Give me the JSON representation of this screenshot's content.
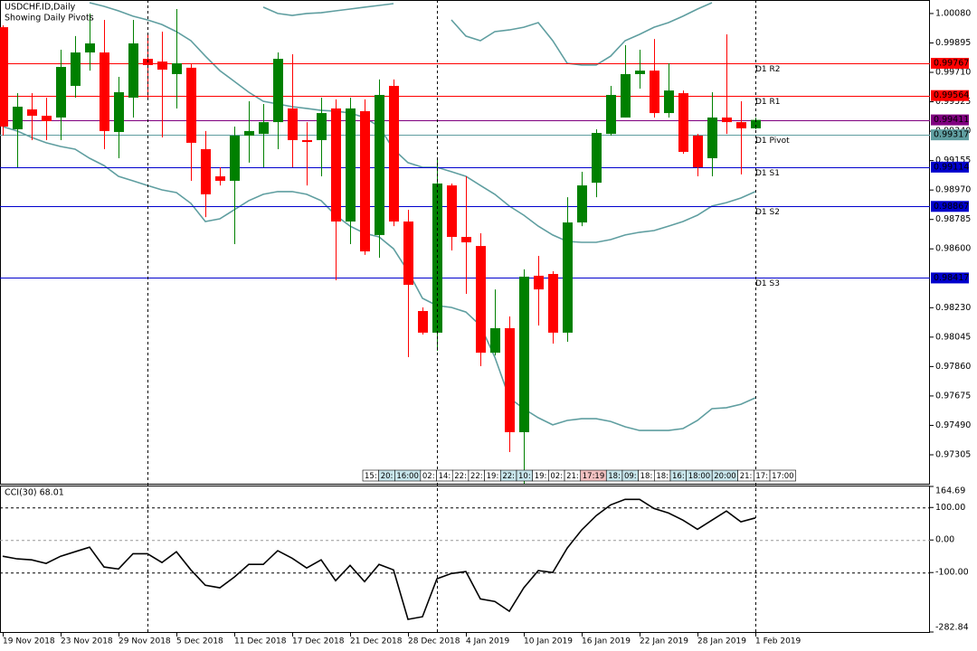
{
  "chart_data": [
    {
      "type": "candlestick",
      "title": "USDCHF.ID,Daily",
      "subtitle": "Showing Daily Pivots",
      "categories": [
        "19 Nov 2018",
        null,
        null,
        null,
        "23 Nov 2018",
        null,
        null,
        null,
        "29 Nov 2018",
        null,
        null,
        null,
        "5 Dec 2018",
        null,
        null,
        null,
        "11 Dec 2018",
        null,
        null,
        null,
        "17 Dec 2018",
        null,
        null,
        null,
        "21 Dec 2018",
        null,
        null,
        null,
        "28 Dec 2018",
        null,
        null,
        null,
        "4 Jan 2019",
        null,
        null,
        null,
        "10 Jan 2019",
        null,
        null,
        null,
        "16 Jan 2019",
        null,
        null,
        null,
        "22 Jan 2019",
        null,
        null,
        null,
        "28 Jan 2019",
        null,
        null,
        null,
        "1 Feb 2019"
      ],
      "open": [
        0.99994,
        0.99352,
        0.99477,
        0.99437,
        0.99426,
        0.99625,
        0.99835,
        0.99835,
        0.99335,
        0.99551,
        0.99795,
        0.99778,
        0.99699,
        0.99739,
        0.99227,
        0.99056,
        0.99028,
        0.99312,
        0.99323,
        0.99397,
        0.99483,
        0.99284,
        0.99284,
        0.99483,
        0.98772,
        0.99466,
        0.98687,
        0.99625,
        0.98772,
        0.98209,
        0.98073,
        0.98999,
        0.98675,
        0.98618,
        0.97947,
        0.98101,
        0.97447,
        0.98431,
        0.98442,
        0.98073,
        0.98766,
        0.99016,
        0.99323,
        0.99426,
        0.99699,
        0.99721,
        0.99454,
        0.99579,
        0.99312,
        0.9917,
        0.99426,
        0.99397,
        0.99358
      ],
      "high": [
        1.00006,
        0.99579,
        0.99579,
        0.99551,
        0.99852,
        0.99938,
        1.0008,
        1.0004,
        0.99682,
        1.0004,
        0.99949,
        0.99966,
        1.00108,
        0.99767,
        0.99341,
        0.99113,
        0.99369,
        0.99528,
        0.99511,
        0.99835,
        0.99824,
        0.99397,
        0.99551,
        0.9954,
        0.99551,
        0.9954,
        0.99665,
        0.99665,
        0.98846,
        0.98232,
        0.9917,
        0.99011,
        0.99056,
        0.98698,
        0.98345,
        0.98175,
        0.98471,
        0.98556,
        0.98459,
        0.98925,
        0.99085,
        0.99352,
        0.99625,
        0.99881,
        0.99852,
        0.9992,
        0.99767,
        0.99596,
        0.99323,
        0.99585,
        0.99949,
        0.99528,
        0.99426
      ],
      "low": [
        0.99312,
        0.99113,
        0.99284,
        0.99284,
        0.99284,
        0.99551,
        0.99721,
        0.99227,
        0.9917,
        0.99426,
        0.99551,
        0.99301,
        0.99483,
        0.99028,
        0.988,
        0.98999,
        0.9863,
        0.99142,
        0.99113,
        0.99227,
        0.99113,
        0.98999,
        0.99056,
        0.98402,
        0.9863,
        0.98562,
        0.98544,
        0.98743,
        0.97919,
        0.98061,
        0.97959,
        0.9859,
        0.98317,
        0.97862,
        0.9793,
        0.97322,
        0.97123,
        0.98118,
        0.98004,
        0.98016,
        0.98743,
        0.98925,
        0.99312,
        0.99426,
        0.99608,
        0.99426,
        0.99426,
        0.99198,
        0.99056,
        0.99056,
        0.99323,
        0.99068,
        0.99352
      ],
      "close": [
        0.99369,
        0.99494,
        0.99437,
        0.99403,
        0.99744,
        0.99835,
        0.99892,
        0.99341,
        0.99585,
        0.99892,
        0.99756,
        0.99727,
        0.99767,
        0.99267,
        0.98943,
        0.99028,
        0.99312,
        0.99341,
        0.99397,
        0.99795,
        0.99284,
        0.99272,
        0.99454,
        0.98772,
        0.99483,
        0.98584,
        0.99568,
        0.98772,
        0.98374,
        0.98073,
        0.99011,
        0.98675,
        0.98641,
        0.97947,
        0.98101,
        0.97447,
        0.98425,
        0.98345,
        0.98073,
        0.98766,
        0.98999,
        0.99329,
        0.99568,
        0.99699,
        0.99721,
        0.99454,
        0.99596,
        0.9921,
        0.99113,
        0.99426,
        0.99397,
        0.99358,
        0.99411
      ],
      "up_color": "#008000",
      "down_color": "#ff0000",
      "bands": [
        {
          "color": "#5f9ea0",
          "values": [
            null,
            null,
            null,
            null,
            null,
            null,
            null,
            null,
            null,
            null,
            null,
            null,
            null,
            null,
            null,
            null,
            null,
            null,
            1.0012,
            1.0008,
            1.00068,
            1.0008,
            1.00085,
            1.00097,
            1.00108,
            1.0012,
            1.00131,
            1.00142,
            null,
            null,
            null,
            1.0004,
            0.99938,
            0.99909,
            0.99966,
            0.99977,
            0.99994,
            1.00023,
            0.99909,
            0.99767,
            0.99756,
            0.99756,
            0.99812,
            0.99909,
            0.99949,
            0.99994,
            1.00023,
            1.00063,
            1.00108,
            1.00148,
            null,
            null,
            null
          ]
        },
        {
          "color": "#5f9ea0",
          "values": [
            null,
            null,
            null,
            null,
            null,
            null,
            1.00148,
            1.00125,
            1.00097,
            1.00063,
            1.0004,
            1.00011,
            0.99966,
            0.99909,
            0.99812,
            0.99721,
            0.99653,
            0.99585,
            0.99528,
            0.99511,
            0.99494,
            0.99483,
            0.99471,
            0.99466,
            0.99454,
            0.99426,
            0.99369,
            0.99227,
            0.99142,
            0.99113,
            0.99113,
            0.99085,
            0.99056,
            0.98999,
            0.98943,
            0.98869,
            0.98812,
            0.98743,
            0.98687,
            0.98647,
            0.98641,
            0.98641,
            0.98658,
            0.98687,
            0.98704,
            0.98715,
            0.98743,
            0.98772,
            0.98812,
            0.98869,
            0.98891,
            0.9892,
            0.9896
          ]
        },
        {
          "color": "#5f9ea0",
          "values": [
            0.99369,
            0.99341,
            0.99301,
            0.99267,
            0.99244,
            0.99227,
            0.9917,
            0.99124,
            0.99056,
            0.99028,
            0.98999,
            0.98971,
            0.98954,
            0.98886,
            0.98772,
            0.98789,
            0.98846,
            0.98903,
            0.98943,
            0.9896,
            0.9896,
            0.98943,
            0.98903,
            0.98812,
            0.98743,
            0.98698,
            0.98675,
            0.98601,
            0.98459,
            0.98289,
            0.98243,
            0.98232,
            0.98203,
            0.98118,
            0.97919,
            0.97663,
            0.97595,
            0.97538,
            0.97493,
            0.97521,
            0.97532,
            0.97532,
            0.97515,
            0.97481,
            0.97458,
            0.97458,
            0.97458,
            0.9747,
            0.97521,
            0.97595,
            0.97601,
            0.97623,
            0.97663
          ]
        }
      ],
      "levels": [
        {
          "label": "D1 R2",
          "value": 0.99767,
          "color": "#ff0000"
        },
        {
          "label": "D1 R1",
          "value": 0.99564,
          "color": "#ff0000"
        },
        {
          "label": "D1 Pivot",
          "value": 0.99317,
          "color": "#5f9ea0"
        },
        {
          "label": "D1 S1",
          "value": 0.99114,
          "color": "#0000cd"
        },
        {
          "label": "D1 S2",
          "value": 0.98867,
          "color": "#0000cd"
        },
        {
          "label": "D1 S3",
          "value": 0.98417,
          "color": "#0000cd"
        }
      ],
      "bid": {
        "value": 0.99411,
        "color": "#800080"
      },
      "separators": [
        10,
        30,
        52
      ],
      "time_labels": [
        "15:",
        "20:",
        "16:00",
        "02:",
        "14:",
        "22:",
        "22:",
        "19:",
        "22:",
        "10:",
        "19:",
        "02:",
        "21:",
        "17:19",
        "18:",
        "09:",
        "18:",
        "18:",
        "16:",
        "18:00",
        "20:00",
        "21:",
        "17:",
        "17:00"
      ],
      "time_label_colors": [
        "#ffffff",
        "#c8e6ec",
        "#c8e6ec",
        "#ffffff",
        "#ffffff",
        "#ffffff",
        "#ffffff",
        "#ffffff",
        "#c8e6ec",
        "#c8e6ec",
        "#ffffff",
        "#ffffff",
        "#ffffff",
        "#f4c2c2",
        "#c8e6ec",
        "#c8e6ec",
        "#ffffff",
        "#ffffff",
        "#c8e6ec",
        "#c8e6ec",
        "#c8e6ec",
        "#ffffff",
        "#ffffff",
        "#ffffff"
      ],
      "ylim": [
        0.97123,
        1.00165
      ],
      "yticks": [
        {
          "value": 1.0008,
          "label": "1.00080"
        },
        {
          "value": 0.99895,
          "label": "0.99895"
        },
        {
          "value": 0.9971,
          "label": "0.99710"
        },
        {
          "value": 0.99525,
          "label": "0.99525"
        },
        {
          "value": 0.9934,
          "label": "0.99340"
        },
        {
          "value": 0.99155,
          "label": "0.99155"
        },
        {
          "value": 0.9897,
          "label": "0.98970"
        },
        {
          "value": 0.98785,
          "label": "0.98785"
        },
        {
          "value": 0.986,
          "label": "0.98600"
        },
        {
          "value": 0.9823,
          "label": "0.98230"
        },
        {
          "value": 0.98045,
          "label": "0.98045"
        },
        {
          "value": 0.9786,
          "label": "0.97860"
        },
        {
          "value": 0.97675,
          "label": "0.97675"
        },
        {
          "value": 0.9749,
          "label": "0.97490"
        },
        {
          "value": 0.97305,
          "label": "0.97305"
        }
      ]
    },
    {
      "type": "line",
      "title": "CCI(30) 68.01",
      "color": "#000000",
      "values": [
        -50,
        -58,
        -61,
        -72,
        -50,
        -36,
        -22,
        -83,
        -89,
        -42,
        -42,
        -69,
        -36,
        -92,
        -139,
        -147,
        -114,
        -75,
        -75,
        -33,
        -56,
        -86,
        -61,
        -125,
        -78,
        -128,
        -75,
        -92,
        -244,
        -236,
        -119,
        -103,
        -97,
        -181,
        -189,
        -219,
        -147,
        -94,
        -100,
        -25,
        31,
        75,
        108,
        125,
        125,
        97,
        83,
        61,
        33,
        61,
        89,
        56,
        68.01
      ],
      "ylim": [
        -282.84,
        164.69
      ],
      "yticks": [
        164.69,
        {
          "value": 100,
          "label": "100.00"
        },
        {
          "value": 0,
          "label": "0.00"
        },
        {
          "value": -100,
          "label": "-100.00"
        },
        -282.84
      ]
    }
  ]
}
